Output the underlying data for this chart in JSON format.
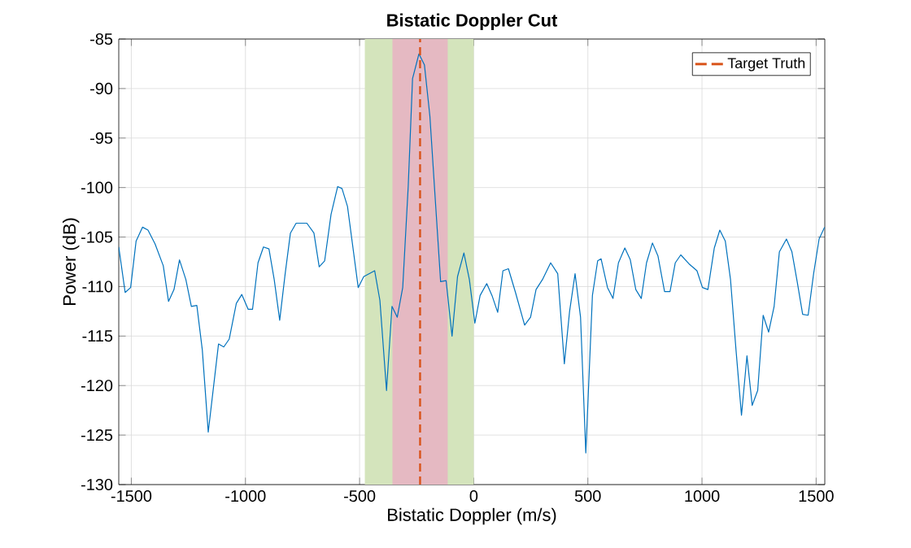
{
  "chart_data": {
    "type": "line",
    "title": "Bistatic Doppler Cut",
    "xlabel": "Bistatic Doppler (m/s)",
    "ylabel": "Power (dB)",
    "x": [
      -1555,
      -1527,
      -1503,
      -1479,
      -1451,
      -1427,
      -1396,
      -1360,
      -1337,
      -1313,
      -1289,
      -1261,
      -1237,
      -1213,
      -1189,
      -1163,
      -1118,
      -1095,
      -1071,
      -1040,
      -1016,
      -988,
      -969,
      -945,
      -921,
      -897,
      -874,
      -850,
      -826,
      -803,
      -778,
      -731,
      -700,
      -677,
      -653,
      -625,
      -596,
      -577,
      -553,
      -506,
      -482,
      -434,
      -411,
      -382,
      -358,
      -335,
      -311,
      -287,
      -268,
      -240,
      -216,
      -192,
      -169,
      -145,
      -121,
      -95,
      -71,
      -43,
      -19,
      5,
      28,
      57,
      80,
      105,
      128,
      152,
      183,
      223,
      249,
      273,
      301,
      337,
      368,
      397,
      420,
      444,
      468,
      491,
      520,
      543,
      558,
      586,
      610,
      634,
      662,
      686,
      710,
      734,
      757,
      783,
      807,
      836,
      860,
      883,
      907,
      943,
      978,
      1002,
      1026,
      1054,
      1078,
      1102,
      1125,
      1149,
      1173,
      1197,
      1220,
      1244,
      1268,
      1292,
      1316,
      1339,
      1370,
      1394,
      1417,
      1441,
      1465,
      1489,
      1513,
      1537
    ],
    "series": [
      {
        "color": "#0072bd",
        "values": [
          -106.0,
          -110.6,
          -110.1,
          -105.4,
          -104.0,
          -104.3,
          -105.7,
          -107.9,
          -111.5,
          -110.3,
          -107.3,
          -109.3,
          -112.0,
          -111.9,
          -116.4,
          -124.7,
          -115.8,
          -116.1,
          -115.3,
          -111.7,
          -110.8,
          -112.3,
          -112.3,
          -107.6,
          -106.0,
          -106.2,
          -109.3,
          -113.4,
          -108.7,
          -104.6,
          -103.6,
          -103.6,
          -104.6,
          -108.0,
          -107.4,
          -102.7,
          -99.9,
          -100.1,
          -101.9,
          -110.1,
          -109.0,
          -108.4,
          -111.4,
          -120.5,
          -112.0,
          -113.1,
          -110.1,
          -99.9,
          -89.0,
          -86.5,
          -87.6,
          -92.8,
          -101.0,
          -109.5,
          -109.4,
          -115.0,
          -109.0,
          -106.6,
          -109.3,
          -113.7,
          -110.9,
          -109.7,
          -110.9,
          -112.6,
          -108.4,
          -108.2,
          -110.6,
          -113.9,
          -113.1,
          -110.3,
          -109.3,
          -107.6,
          -108.7,
          -117.8,
          -112.5,
          -108.7,
          -113.1,
          -126.8,
          -110.9,
          -107.4,
          -107.2,
          -110.1,
          -111.2,
          -107.6,
          -106.1,
          -107.3,
          -110.3,
          -111.2,
          -107.6,
          -105.6,
          -106.9,
          -110.5,
          -110.5,
          -107.6,
          -106.8,
          -107.7,
          -108.4,
          -110.1,
          -110.3,
          -106.1,
          -104.3,
          -105.4,
          -109.3,
          -116.4,
          -123.0,
          -117.0,
          -122.0,
          -120.5,
          -112.9,
          -114.6,
          -112.0,
          -106.5,
          -105.2,
          -106.5,
          -109.5,
          -112.8,
          -112.9,
          -108.7,
          -105.2,
          -104.0
        ]
      },
      {
        "name": "Target Truth",
        "type": "line",
        "color": "#d95319",
        "line_style": "dashed",
        "x": [
          -235,
          -235
        ],
        "values": [
          -130,
          -85
        ]
      }
    ],
    "xlim": [
      -1555,
      1538
    ],
    "ylim": [
      -130,
      -85
    ],
    "xticks": [
      -1500,
      -1000,
      -500,
      0,
      500,
      1000,
      1500
    ],
    "yticks": [
      -130,
      -125,
      -120,
      -115,
      -110,
      -105,
      -100,
      -95,
      -90,
      -85
    ],
    "bands": [
      {
        "axis": "x",
        "from": -477,
        "to": 0,
        "color": "#d4e4bc"
      },
      {
        "axis": "x",
        "from": -356,
        "to": -114,
        "color": "#e5b9c2"
      }
    ],
    "grid": true,
    "legend": "top right",
    "line_style": "solid",
    "marker": "none"
  }
}
